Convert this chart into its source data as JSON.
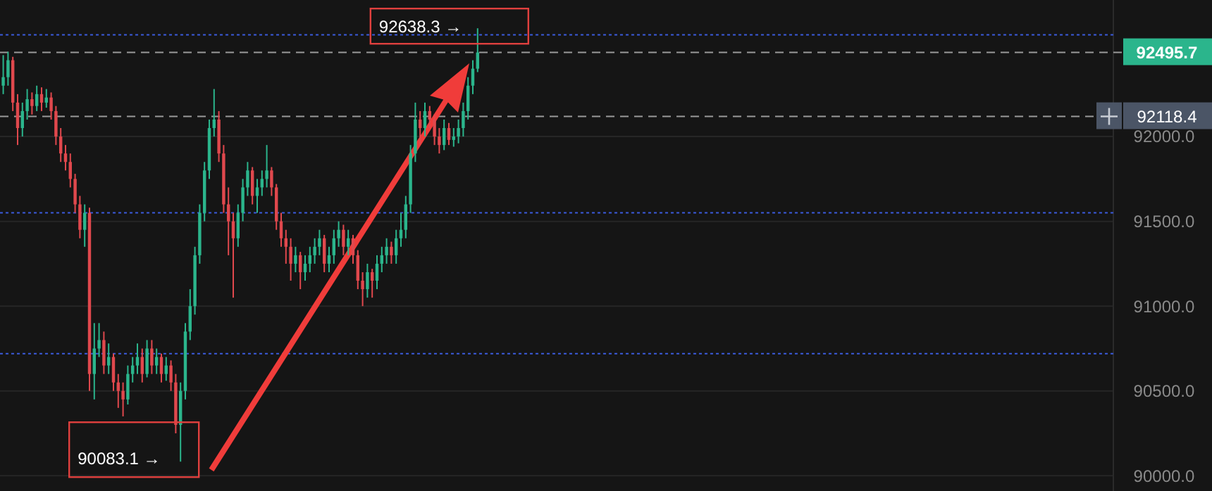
{
  "chart_data": {
    "type": "candlestick",
    "categories": [
      null,
      null,
      null,
      null,
      null,
      null,
      null,
      null,
      null,
      null,
      null,
      null,
      null,
      null,
      null,
      null,
      null,
      null,
      null,
      null,
      null,
      null,
      null,
      null,
      null,
      null,
      null,
      null,
      null,
      null,
      null,
      null,
      null,
      null,
      null,
      null,
      null,
      null,
      null,
      null,
      null,
      null,
      null,
      null,
      null,
      null,
      null,
      null,
      null,
      null,
      null,
      null,
      null,
      null,
      null,
      null,
      null,
      null,
      null,
      null,
      null,
      null,
      null,
      null,
      null,
      null,
      null,
      null,
      null,
      null,
      null,
      null,
      null,
      null,
      null,
      null,
      null,
      null,
      null,
      null,
      null,
      null,
      null,
      null,
      null,
      null,
      null,
      null,
      null,
      null,
      null,
      null,
      null,
      null,
      null,
      null,
      null,
      null,
      null,
      null,
      null,
      null,
      null,
      null,
      null,
      null,
      null,
      null,
      null,
      null,
      null,
      null,
      null,
      null,
      null,
      null,
      null,
      null,
      null,
      null,
      null,
      null,
      null,
      null,
      null,
      null,
      null,
      null,
      null,
      null,
      null,
      null,
      null,
      null,
      null,
      null,
      null,
      null,
      null,
      null,
      null,
      null,
      null,
      null,
      null,
      null,
      null,
      null,
      null,
      null,
      null,
      null,
      null,
      null,
      null,
      null,
      null,
      null,
      null,
      null,
      null,
      null,
      null,
      null,
      null,
      null,
      null,
      null,
      null,
      null,
      null,
      null,
      null,
      null,
      null,
      null,
      null,
      null,
      null,
      null,
      null,
      null,
      null,
      null,
      null,
      null,
      null,
      null,
      null,
      null,
      null,
      null,
      null,
      null,
      null,
      null,
      null,
      null,
      null,
      null,
      null,
      null,
      null,
      null,
      null,
      null,
      null,
      null,
      null,
      null,
      null,
      null,
      null,
      null,
      null,
      null,
      null,
      null,
      null,
      null,
      null,
      null,
      null,
      null,
      null,
      null,
      null,
      null,
      null,
      null,
      null,
      null
    ],
    "ohlc": [
      [
        92300,
        92480,
        92250,
        92350
      ],
      [
        92350,
        92500,
        92300,
        92450
      ],
      [
        92450,
        92470,
        92150,
        92200
      ],
      [
        92200,
        92250,
        91950,
        92050
      ],
      [
        92050,
        92200,
        92000,
        92150
      ],
      [
        92150,
        92280,
        92100,
        92220
      ],
      [
        92220,
        92260,
        92130,
        92180
      ],
      [
        92180,
        92300,
        92150,
        92250
      ],
      [
        92250,
        92290,
        92150,
        92200
      ],
      [
        92200,
        92280,
        92170,
        92230
      ],
      [
        92230,
        92260,
        92100,
        92150
      ],
      [
        92150,
        92180,
        91950,
        92000
      ],
      [
        92000,
        92050,
        91850,
        91900
      ],
      [
        91900,
        91950,
        91800,
        91850
      ],
      [
        91850,
        91900,
        91700,
        91750
      ],
      [
        91750,
        91780,
        91550,
        91600
      ],
      [
        91600,
        91650,
        91400,
        91450
      ],
      [
        91450,
        91600,
        91350,
        91550
      ],
      [
        91550,
        91580,
        90500,
        90600
      ],
      [
        90600,
        90900,
        90450,
        90750
      ],
      [
        90750,
        90900,
        90700,
        90800
      ],
      [
        90800,
        90850,
        90600,
        90650
      ],
      [
        90650,
        90780,
        90600,
        90700
      ],
      [
        90700,
        90720,
        90500,
        90550
      ],
      [
        90550,
        90600,
        90400,
        90500
      ],
      [
        90500,
        90550,
        90350,
        90450
      ],
      [
        90450,
        90650,
        90420,
        90600
      ],
      [
        90600,
        90700,
        90550,
        90650
      ],
      [
        90650,
        90780,
        90600,
        90700
      ],
      [
        90700,
        90750,
        90550,
        90600
      ],
      [
        90600,
        90800,
        90580,
        90750
      ],
      [
        90750,
        90800,
        90600,
        90650
      ],
      [
        90650,
        90750,
        90600,
        90700
      ],
      [
        90700,
        90720,
        90550,
        90600
      ],
      [
        90600,
        90700,
        90560,
        90650
      ],
      [
        90650,
        90680,
        90500,
        90550
      ],
      [
        90550,
        90600,
        90250,
        90300
      ],
      [
        90300,
        90550,
        90083.1,
        90500
      ],
      [
        90500,
        90900,
        90450,
        90850
      ],
      [
        90850,
        91100,
        90800,
        91000
      ],
      [
        91000,
        91350,
        90950,
        91300
      ],
      [
        91300,
        91600,
        91250,
        91550
      ],
      [
        91550,
        91850,
        91500,
        91800
      ],
      [
        91800,
        92100,
        91750,
        92050
      ],
      [
        92050,
        92280,
        92000,
        92100
      ],
      [
        92100,
        92150,
        91850,
        91900
      ],
      [
        91900,
        91950,
        91550,
        91600
      ],
      [
        91600,
        91700,
        91300,
        91500
      ],
      [
        91500,
        91550,
        91050,
        91400
      ],
      [
        91400,
        91600,
        91350,
        91550
      ],
      [
        91550,
        91750,
        91500,
        91700
      ],
      [
        91700,
        91850,
        91650,
        91800
      ],
      [
        91800,
        91820,
        91600,
        91650
      ],
      [
        91650,
        91750,
        91550,
        91700
      ],
      [
        91700,
        91800,
        91650,
        91750
      ],
      [
        91750,
        91950,
        91700,
        91800
      ],
      [
        91800,
        91820,
        91650,
        91700
      ],
      [
        91700,
        91720,
        91450,
        91500
      ],
      [
        91500,
        91550,
        91350,
        91400
      ],
      [
        91400,
        91450,
        91250,
        91350
      ],
      [
        91350,
        91400,
        91150,
        91250
      ],
      [
        91250,
        91350,
        91200,
        91300
      ],
      [
        91300,
        91320,
        91100,
        91200
      ],
      [
        91200,
        91300,
        91150,
        91250
      ],
      [
        91250,
        91350,
        91200,
        91300
      ],
      [
        91300,
        91400,
        91250,
        91350
      ],
      [
        91350,
        91450,
        91300,
        91400
      ],
      [
        91400,
        91420,
        91200,
        91250
      ],
      [
        91250,
        91350,
        91200,
        91300
      ],
      [
        91300,
        91450,
        91250,
        91400
      ],
      [
        91400,
        91500,
        91350,
        91450
      ],
      [
        91450,
        91480,
        91300,
        91350
      ],
      [
        91350,
        91450,
        91300,
        91400
      ],
      [
        91400,
        91420,
        91250,
        91300
      ],
      [
        91300,
        91330,
        91100,
        91150
      ],
      [
        91150,
        91200,
        91000,
        91100
      ],
      [
        91100,
        91250,
        91050,
        91200
      ],
      [
        91200,
        91220,
        91050,
        91150
      ],
      [
        91150,
        91300,
        91100,
        91250
      ],
      [
        91250,
        91350,
        91200,
        91300
      ],
      [
        91300,
        91400,
        91250,
        91350
      ],
      [
        91350,
        91380,
        91250,
        91300
      ],
      [
        91300,
        91450,
        91250,
        91400
      ],
      [
        91400,
        91550,
        91350,
        91450
      ],
      [
        91450,
        91650,
        91400,
        91600
      ],
      [
        91600,
        91950,
        91550,
        91900
      ],
      [
        91900,
        92200,
        91850,
        92100
      ],
      [
        92100,
        92150,
        91950,
        92050
      ],
      [
        92050,
        92200,
        92000,
        92150
      ],
      [
        92150,
        92180,
        92050,
        92100
      ],
      [
        92100,
        92130,
        91950,
        92000
      ],
      [
        92000,
        92050,
        91900,
        91950
      ],
      [
        91950,
        92100,
        91920,
        92050
      ],
      [
        92050,
        92080,
        91950,
        91980
      ],
      [
        91980,
        92050,
        91940,
        92000
      ],
      [
        92000,
        92100,
        91960,
        92050
      ],
      [
        92050,
        92200,
        92000,
        92150
      ],
      [
        92150,
        92350,
        92100,
        92300
      ],
      [
        92300,
        92450,
        92250,
        92400
      ],
      [
        92400,
        92638.3,
        92380,
        92495.7
      ],
      null,
      null,
      null,
      null,
      null,
      null,
      null,
      null,
      null,
      null,
      null,
      null,
      null,
      null,
      null,
      null,
      null,
      null,
      null,
      null,
      null,
      null,
      null,
      null,
      null,
      null,
      null,
      null,
      null,
      null,
      null,
      null,
      null,
      null,
      null,
      null,
      null,
      null,
      null,
      null,
      null,
      null,
      null,
      null,
      null,
      null,
      null,
      null,
      null,
      null,
      null,
      null,
      null,
      null,
      null,
      null,
      null,
      null,
      null,
      null,
      null,
      null,
      null,
      null,
      null,
      null,
      null,
      null,
      null,
      null,
      null,
      null,
      null,
      null,
      null,
      null,
      null,
      null,
      null,
      null,
      null,
      null,
      null,
      null,
      null,
      null,
      null,
      null,
      null,
      null,
      null,
      null,
      null,
      null,
      null,
      null,
      null,
      null,
      null,
      null,
      null,
      null,
      null,
      null,
      null,
      null,
      null,
      null,
      null,
      null,
      null,
      null,
      null,
      null,
      null,
      null,
      null,
      null,
      null,
      null,
      null,
      null,
      null,
      null,
      null,
      null,
      null,
      null,
      null,
      null,
      null,
      null
    ],
    "colors": [
      "#2bb58c",
      "#2bb58c",
      "#e0484d",
      "#e0484d",
      "#2bb58c",
      "#2bb58c",
      "#e0484d",
      "#2bb58c",
      "#e0484d",
      "#2bb58c",
      "#e0484d",
      "#e0484d",
      "#e0484d",
      "#e0484d",
      "#e0484d",
      "#e0484d",
      "#e0484d",
      "#2bb58c",
      "#e0484d",
      "#2bb58c",
      "#2bb58c",
      "#e0484d",
      "#2bb58c",
      "#e0484d",
      "#e0484d",
      "#e0484d",
      "#2bb58c",
      "#2bb58c",
      "#2bb58c",
      "#e0484d",
      "#2bb58c",
      "#e0484d",
      "#2bb58c",
      "#e0484d",
      "#2bb58c",
      "#e0484d",
      "#e0484d",
      "#2bb58c",
      "#2bb58c",
      "#2bb58c",
      "#2bb58c",
      "#2bb58c",
      "#2bb58c",
      "#2bb58c",
      "#2bb58c",
      "#e0484d",
      "#e0484d",
      "#e0484d",
      "#e0484d",
      "#2bb58c",
      "#2bb58c",
      "#2bb58c",
      "#e0484d",
      "#2bb58c",
      "#2bb58c",
      "#2bb58c",
      "#e0484d",
      "#e0484d",
      "#e0484d",
      "#e0484d",
      "#e0484d",
      "#2bb58c",
      "#e0484d",
      "#2bb58c",
      "#2bb58c",
      "#2bb58c",
      "#2bb58c",
      "#e0484d",
      "#2bb58c",
      "#2bb58c",
      "#2bb58c",
      "#e0484d",
      "#2bb58c",
      "#e0484d",
      "#e0484d",
      "#e0484d",
      "#2bb58c",
      "#e0484d",
      "#2bb58c",
      "#2bb58c",
      "#2bb58c",
      "#e0484d",
      "#2bb58c",
      "#2bb58c",
      "#2bb58c",
      "#2bb58c",
      "#2bb58c",
      "#e0484d",
      "#2bb58c",
      "#e0484d",
      "#e0484d",
      "#e0484d",
      "#2bb58c",
      "#e0484d",
      "#2bb58c",
      "#2bb58c",
      "#2bb58c",
      "#2bb58c",
      "#2bb58c",
      "#2bb58c",
      null,
      null,
      null,
      null,
      null,
      null,
      null,
      null,
      null,
      null,
      null,
      null,
      null,
      null,
      null,
      null,
      null,
      null,
      null,
      null,
      null,
      null,
      null,
      null,
      null,
      null,
      null,
      null,
      null,
      null,
      null,
      null,
      null,
      null,
      null,
      null,
      null,
      null,
      null,
      null,
      null,
      null,
      null,
      null,
      null,
      null,
      null,
      null,
      null,
      null,
      null,
      null,
      null,
      null,
      null,
      null,
      null,
      null,
      null,
      null,
      null,
      null,
      null,
      null,
      null,
      null,
      null,
      null,
      null,
      null,
      null,
      null,
      null,
      null,
      null,
      null,
      null,
      null,
      null,
      null,
      null,
      null,
      null,
      null,
      null,
      null,
      null,
      null,
      null,
      null,
      null,
      null,
      null,
      null,
      null,
      null,
      null,
      null,
      null,
      null,
      null,
      null,
      null,
      null,
      null,
      null,
      null,
      null,
      null,
      null,
      null,
      null,
      null,
      null,
      null,
      null,
      null,
      null,
      null,
      null,
      null,
      null,
      null,
      null,
      null,
      null,
      null,
      null,
      null,
      null,
      null,
      null
    ],
    "ylim": [
      89910,
      92805
    ],
    "yticks": [
      {
        "value": 90000,
        "label": "90000.0"
      },
      {
        "value": 90500,
        "label": "90500.0"
      },
      {
        "value": 91000,
        "label": "91000.0"
      },
      {
        "value": 91500,
        "label": "91500.0"
      },
      {
        "value": 92000,
        "label": "92000.0"
      }
    ],
    "grid": "y",
    "tick_labels": "y",
    "ref_lines": [
      {
        "axis": "y",
        "value": 92495.7,
        "label": "92495.7",
        "color": "#9a9a9a",
        "line_style": "dashed"
      },
      {
        "axis": "y",
        "value": 92118.4,
        "label": "92118.4",
        "color": "#9a9a9a",
        "line_style": "dashed"
      },
      {
        "axis": "y",
        "value": 92600,
        "color": "#3b5bdb",
        "line_style": "dotted"
      },
      {
        "axis": "y",
        "value": 91550,
        "color": "#3b5bdb",
        "line_style": "dotted"
      },
      {
        "axis": "y",
        "value": 90720,
        "color": "#3b5bdb",
        "line_style": "dotted"
      }
    ],
    "annotations": [
      "92638.3 →",
      "90083.1 →"
    ]
  }
}
